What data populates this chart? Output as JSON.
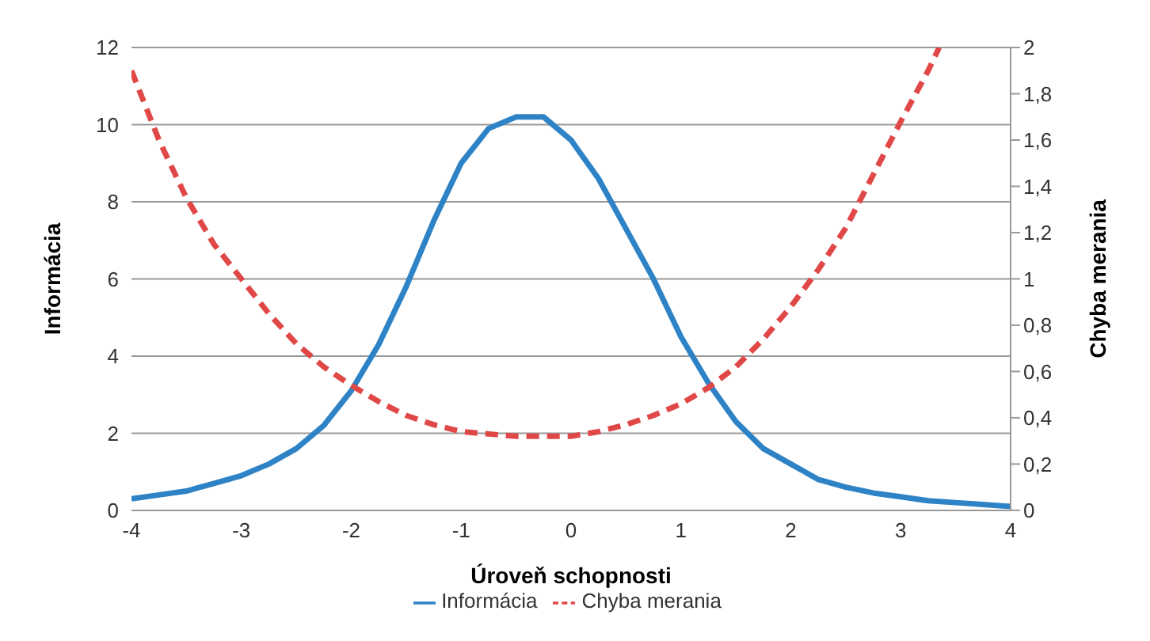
{
  "chart_data": {
    "type": "line",
    "xlabel": "Úroveň schopnosti",
    "ylabel": "Informácia",
    "y2label": "Chyba merania",
    "xlim": [
      -4,
      4
    ],
    "xticks": [
      -4,
      -3,
      -2,
      -1,
      0,
      1,
      2,
      3,
      4
    ],
    "ylim": [
      0,
      12
    ],
    "yticks": [
      0,
      2,
      4,
      6,
      8,
      10,
      12
    ],
    "y2lim": [
      0,
      2
    ],
    "y2ticks": [
      {
        "value": 0,
        "label": "0"
      },
      {
        "value": 0.2,
        "label": "0,2"
      },
      {
        "value": 0.4,
        "label": "0,4"
      },
      {
        "value": 0.6,
        "label": "0,6"
      },
      {
        "value": 0.8,
        "label": "0,8"
      },
      {
        "value": 1,
        "label": "1"
      },
      {
        "value": 1.2,
        "label": "1,2"
      },
      {
        "value": 1.4,
        "label": "1,4"
      },
      {
        "value": 1.6,
        "label": "1,6"
      },
      {
        "value": 1.8,
        "label": "1,8"
      },
      {
        "value": 2,
        "label": "2"
      }
    ],
    "grid": "y",
    "legend": "bottom",
    "marker": "none",
    "series": [
      {
        "name": "Informácia",
        "color": "#2e83c6",
        "line_style": "solid",
        "x": [
          -4,
          -3.75,
          -3.5,
          -3.25,
          -3,
          -2.75,
          -2.5,
          -2.25,
          -2,
          -1.75,
          -1.5,
          -1.25,
          -1,
          -0.75,
          -0.5,
          -0.25,
          0,
          0.25,
          0.5,
          0.75,
          1,
          1.25,
          1.5,
          1.75,
          2,
          2.25,
          2.5,
          2.75,
          3,
          3.25,
          3.5,
          3.75,
          4
        ],
        "values": [
          0.3,
          0.4,
          0.5,
          0.7,
          0.9,
          1.2,
          1.6,
          2.2,
          3.1,
          4.3,
          5.8,
          7.5,
          9.0,
          9.9,
          10.2,
          10.2,
          9.6,
          8.6,
          7.3,
          6.0,
          4.5,
          3.3,
          2.3,
          1.6,
          1.2,
          0.8,
          0.6,
          0.45,
          0.35,
          0.25,
          0.2,
          0.15,
          0.1
        ]
      },
      {
        "name": "Chyba merania",
        "color": "#e04848",
        "line_style": "dashed",
        "axis": "y2",
        "x": [
          -4,
          -3.75,
          -3.5,
          -3.25,
          -3,
          -2.75,
          -2.5,
          -2.25,
          -2,
          -1.75,
          -1.5,
          -1.25,
          -1,
          -0.75,
          -0.5,
          -0.25,
          0,
          0.25,
          0.5,
          0.75,
          1,
          1.25,
          1.5,
          1.75,
          2,
          2.25,
          2.5,
          2.75,
          3,
          3.25,
          3.35
        ],
        "values": [
          1.9,
          1.6,
          1.35,
          1.15,
          1.0,
          0.85,
          0.72,
          0.62,
          0.54,
          0.47,
          0.41,
          0.37,
          0.34,
          0.33,
          0.32,
          0.32,
          0.32,
          0.34,
          0.37,
          0.41,
          0.46,
          0.53,
          0.62,
          0.74,
          0.88,
          1.04,
          1.22,
          1.45,
          1.68,
          1.9,
          2.0
        ]
      }
    ]
  }
}
